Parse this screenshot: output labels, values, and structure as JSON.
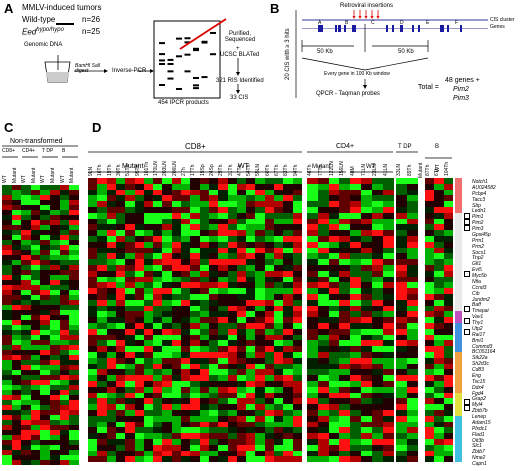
{
  "panels": {
    "a": "A",
    "b": "B",
    "c": "C",
    "d": "D"
  },
  "panel_a": {
    "title": "MMLV-induced tumors",
    "wildtype_label": "Wild-type",
    "wildtype_n": "n=26",
    "eed_label": "Eedhypo/hypo",
    "eed_n": "n=25",
    "genomic_dna": "Genomic DNA",
    "digest": "BamHI SalI digest",
    "inverse_pcr": "Inverse-PCR",
    "products": "454 IPCR products",
    "purified": "Purified, Sequenced",
    "plus": "+",
    "blat": "UCSC BLATed",
    "ris": "321 RIS Identified",
    "cis": "33 CIS"
  },
  "panel_b": {
    "retroviral": "Retroviral insertions",
    "cis_cluster": "CIS cluster",
    "genes": "Genes",
    "cis20": "20 CIS with ≥ 3 hits",
    "kb_left": "50 Kb",
    "kb_right": "50 Kb",
    "every_gene": "Every gene in 100 Kb window",
    "qpcr": "QPCR - Taqman probes",
    "total": "Total =",
    "genes48": "48 genes +",
    "pim2": "Pim2",
    "pim3": "Pim3",
    "letters": [
      "A",
      "B",
      "C",
      "D",
      "E",
      "F"
    ]
  },
  "panel_c": {
    "title": "Non-transformed",
    "groups": [
      "CD8+",
      "CD4+",
      "T DP",
      "B"
    ],
    "columns": [
      "WT",
      "Mutant",
      "WT",
      "Mutant",
      "WT",
      "Mutant",
      "WT",
      "Mutant"
    ]
  },
  "panel_d": {
    "cd8_title": "CD8+",
    "cd4_title": "CD4+",
    "tdp_title": "T DP",
    "b_title": "B",
    "mutant": "Mutant",
    "wt": "WT",
    "cd8_samples": [
      "9LN",
      "16Th",
      "19Th",
      "30Th",
      "51Th",
      "95Th",
      "101Th",
      "170LN",
      "203LN",
      "206LN",
      "2Th",
      "17Th",
      "19Sp",
      "24Sp",
      "29Th",
      "31Th",
      "47Th",
      "54Th",
      "55LN",
      "60Th",
      "67Th",
      "83Th",
      "94Th"
    ],
    "cd4_samples": [
      "46Th",
      "77Th",
      "122LN",
      "156LN",
      "48M",
      "71LN",
      "23LN",
      "41LN"
    ],
    "tdp_samples": [
      "33LN",
      "89Th"
    ],
    "b_samples": [
      "87Th",
      "6Th",
      "104Th"
    ],
    "genes": [
      "Notch1",
      "AU024582",
      "Pcbp4",
      "Tacc3",
      "Sbp",
      "Ledn1",
      "Pim1",
      "Pim2",
      "Pim3",
      "Gpsi45p",
      "Prm1",
      "Prm2",
      "Socs1",
      "Tnp2",
      "Gfi1",
      "Evi5",
      "Myc5b",
      "Nfia",
      "Ccnd3",
      "Cib",
      "Jundm2",
      "Baff",
      "Tmepai",
      "Vav1",
      "Thy1",
      "Utp2",
      "Rai17",
      "Bmi1",
      "Commd3",
      "BC051164",
      "Stk22a",
      "Sh2d3c",
      "Cd83",
      "Eng",
      "Tsc15",
      "Ddx4",
      "Fgd4",
      "Grap2",
      "Myl4",
      "Zbtb7b",
      "Lenep",
      "Adam15",
      "Plxdc1",
      "Flad1",
      "Oit3b",
      "Slc1",
      "Zbtb7",
      "Nme2",
      "Capn1"
    ]
  },
  "colors": {
    "red": "#e3000f",
    "green": "#00dc0f",
    "black": "#000000",
    "arrow_red": "#e00000",
    "gene_blue": "#1a1aa0"
  }
}
